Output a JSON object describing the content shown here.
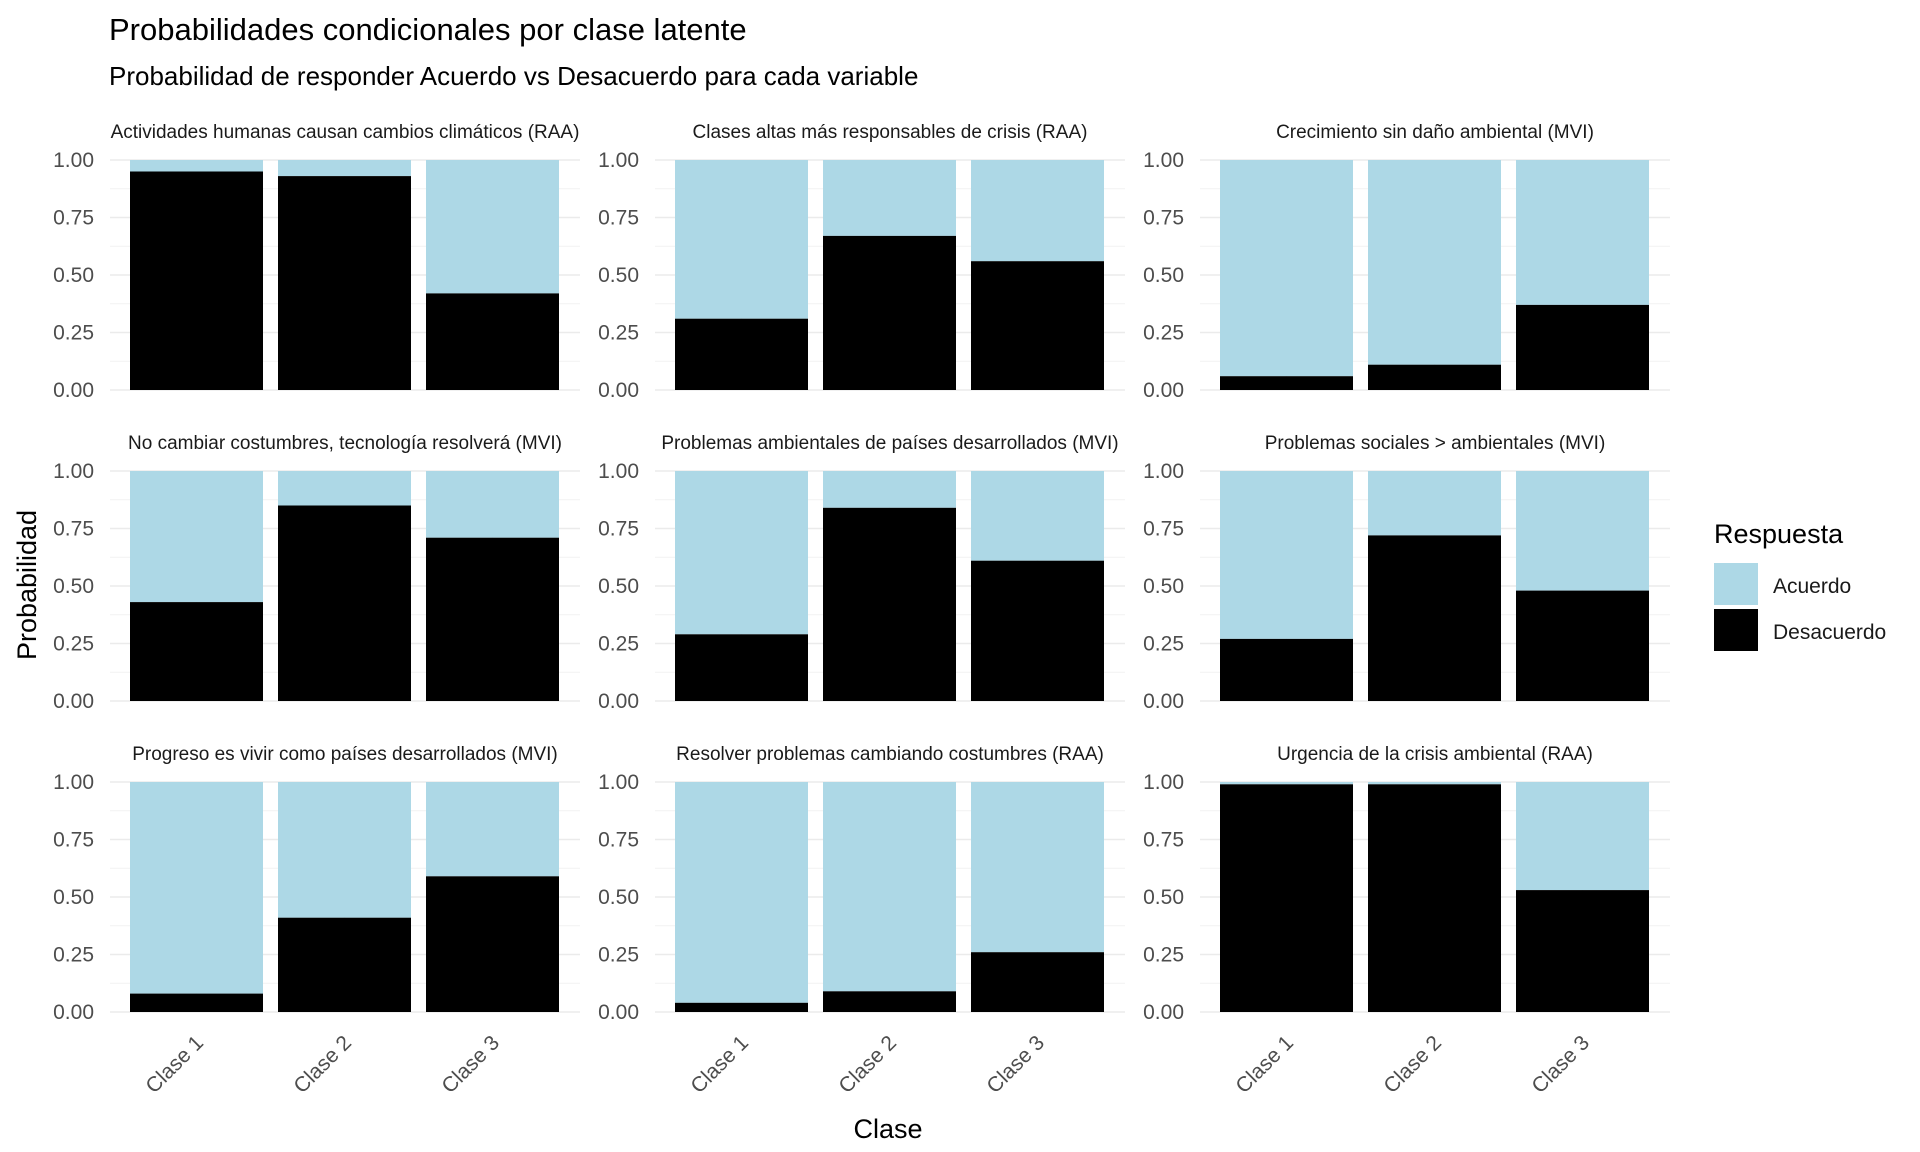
{
  "chart_data": {
    "type": "bar",
    "stacked": true,
    "title": "Probabilidades condicionales por clase latente",
    "subtitle": "Probabilidad de responder Acuerdo vs Desacuerdo para cada variable",
    "xlabel": "Clase",
    "ylabel": "Probabilidad",
    "ylim": [
      0,
      1
    ],
    "yticks": [
      "0.00",
      "0.25",
      "0.50",
      "0.75",
      "1.00"
    ],
    "categories": [
      "Clase 1",
      "Clase 2",
      "Clase 3"
    ],
    "legend": {
      "title": "Respuesta",
      "placement": "right",
      "entries": [
        {
          "name": "Acuerdo",
          "color": "#ADD8E6"
        },
        {
          "name": "Desacuerdo",
          "color": "#000000"
        }
      ]
    },
    "grid": true,
    "panels": [
      {
        "title": "Actividades humanas causan cambios climáticos (RAA)",
        "desacuerdo": [
          0.95,
          0.93,
          0.42
        ],
        "acuerdo": [
          0.05,
          0.07,
          0.58
        ]
      },
      {
        "title": "Clases altas más responsables de crisis (RAA)",
        "desacuerdo": [
          0.31,
          0.67,
          0.56
        ],
        "acuerdo": [
          0.69,
          0.33,
          0.44
        ]
      },
      {
        "title": "Crecimiento sin daño ambiental (MVI)",
        "desacuerdo": [
          0.06,
          0.11,
          0.37
        ],
        "acuerdo": [
          0.94,
          0.89,
          0.63
        ]
      },
      {
        "title": "No cambiar costumbres, tecnología resolverá (MVI)",
        "desacuerdo": [
          0.43,
          0.85,
          0.71
        ],
        "acuerdo": [
          0.57,
          0.15,
          0.29
        ]
      },
      {
        "title": "Problemas ambientales de países desarrollados (MVI)",
        "desacuerdo": [
          0.29,
          0.84,
          0.61
        ],
        "acuerdo": [
          0.71,
          0.16,
          0.39
        ]
      },
      {
        "title": "Problemas sociales > ambientales (MVI)",
        "desacuerdo": [
          0.27,
          0.72,
          0.48
        ],
        "acuerdo": [
          0.73,
          0.28,
          0.52
        ]
      },
      {
        "title": "Progreso es vivir como países desarrollados (MVI)",
        "desacuerdo": [
          0.08,
          0.41,
          0.59
        ],
        "acuerdo": [
          0.92,
          0.59,
          0.41
        ]
      },
      {
        "title": "Resolver problemas cambiando costumbres (RAA)",
        "desacuerdo": [
          0.04,
          0.09,
          0.26
        ],
        "acuerdo": [
          0.96,
          0.91,
          0.74
        ]
      },
      {
        "title": "Urgencia de la crisis ambiental (RAA)",
        "desacuerdo": [
          0.99,
          0.99,
          0.53
        ],
        "acuerdo": [
          0.01,
          0.01,
          0.47
        ]
      }
    ]
  }
}
